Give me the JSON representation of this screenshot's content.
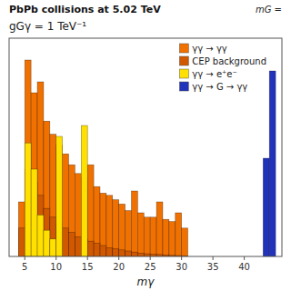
{
  "chart_data": {
    "type": "histogram",
    "title": "PbPb collisions at 5.02 TeV",
    "subtitle": "gGγ = 1 TeV⁻¹",
    "annotation": "mG =",
    "xlabel": "mγ",
    "xlim": [
      2.5,
      46
    ],
    "ylim": [
      0,
      1.0
    ],
    "xticks": [
      5,
      10,
      15,
      20,
      25,
      30,
      35,
      40
    ],
    "tick_labels": "x",
    "legend": "upper right",
    "series": [
      {
        "name": "γγ → γγ",
        "color": "#F07000",
        "bins": [
          3,
          4,
          5,
          6,
          7,
          8,
          9,
          10,
          11,
          12,
          13,
          14,
          15,
          16,
          17,
          18,
          19,
          20,
          21,
          22,
          23,
          24,
          25,
          26,
          27,
          28,
          29,
          30,
          31,
          32,
          33,
          34,
          35,
          36,
          37,
          38,
          39,
          40,
          41
        ],
        "values": [
          0.0,
          0.25,
          0.9,
          0.75,
          0.8,
          0.62,
          0.56,
          0.51,
          0.47,
          0.42,
          0.38,
          0.36,
          0.42,
          0.32,
          0.29,
          0.28,
          0.26,
          0.24,
          0.21,
          0.3,
          0.2,
          0.18,
          0.18,
          0.25,
          0.17,
          0.16,
          0.2,
          0.13,
          0.0,
          0.0,
          0.0,
          0.0,
          0.0,
          0.0,
          0.0,
          0.0,
          0.0,
          0.0
        ]
      },
      {
        "name": "CEP background",
        "color": "#D05800",
        "bins": [
          3,
          4,
          5,
          6,
          7,
          8,
          9,
          10,
          11,
          12,
          13,
          14,
          15,
          16,
          17,
          18,
          19,
          20,
          21,
          22,
          23,
          24,
          25,
          26,
          27,
          28,
          29,
          30,
          31,
          32,
          33,
          34,
          35,
          36,
          37,
          38,
          39,
          40,
          41
        ],
        "values": [
          0.0,
          0.13,
          0.4,
          0.34,
          0.28,
          0.22,
          0.18,
          0.15,
          0.13,
          0.11,
          0.09,
          0.08,
          0.07,
          0.06,
          0.05,
          0.04,
          0.035,
          0.03,
          0.025,
          0.02,
          0.015,
          0.012,
          0.01,
          0.009,
          0.007,
          0.005,
          0.004,
          0.003,
          0.0,
          0.0,
          0.0,
          0.0,
          0.0,
          0.0,
          0.0,
          0.0,
          0.0,
          0.0
        ]
      },
      {
        "name": "γγ → e⁺e⁻",
        "color": "#FFE000",
        "bins": [
          3,
          4,
          5,
          6,
          7,
          8,
          9,
          10,
          11,
          12,
          13,
          14,
          15,
          16,
          17,
          18,
          19,
          20,
          21,
          22,
          23,
          24,
          25,
          26,
          27,
          28,
          29,
          30,
          31,
          32,
          33,
          34,
          35,
          36,
          37,
          38,
          39,
          40,
          41
        ],
        "values": [
          0.0,
          0.0,
          0.52,
          0.4,
          0.19,
          0.12,
          0.08,
          0.55,
          0.0,
          0.0,
          0.0,
          0.6,
          0.0,
          0.0,
          0.0,
          0.0,
          0.0,
          0.0,
          0.0,
          0.0,
          0.0,
          0.0,
          0.0,
          0.0,
          0.0,
          0.0,
          0.0,
          0.0,
          0.0,
          0.0,
          0.0,
          0.0,
          0.0,
          0.0,
          0.0,
          0.0,
          0.0,
          0.0
        ]
      },
      {
        "name": "γγ → G → γγ",
        "color": "#2233BB",
        "bins": [
          43,
          44,
          45
        ],
        "values": [
          0.45,
          0.85
        ]
      }
    ]
  }
}
